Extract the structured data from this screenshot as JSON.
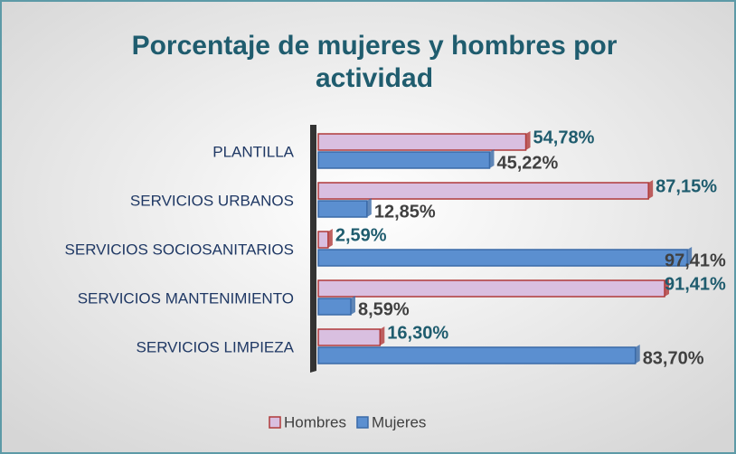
{
  "chart_data": {
    "type": "bar",
    "orientation": "horizontal",
    "title": "Porcentaje de mujeres y hombres por actividad",
    "categories": [
      "PLANTILLA",
      "SERVICIOS URBANOS",
      "SERVICIOS SOCIOSANITARIOS",
      "SERVICIOS MANTENIMIENTO",
      "SERVICIOS LIMPIEZA"
    ],
    "series": [
      {
        "name": "Hombres",
        "color": "#d9bfe0",
        "values": [
          54.78,
          87.15,
          2.59,
          91.41,
          16.3
        ],
        "value_labels": [
          "54,78%",
          "87,15%",
          "2,59%",
          "91,41%",
          "16,30%"
        ]
      },
      {
        "name": "Mujeres",
        "color": "#5b8fd0",
        "values": [
          45.22,
          12.85,
          97.41,
          8.59,
          83.7
        ],
        "value_labels": [
          "45,22%",
          "12,85%",
          "97,41%",
          "8,59%",
          "83,70%"
        ]
      }
    ],
    "xlim": [
      0,
      100
    ],
    "legend": "bottom"
  }
}
